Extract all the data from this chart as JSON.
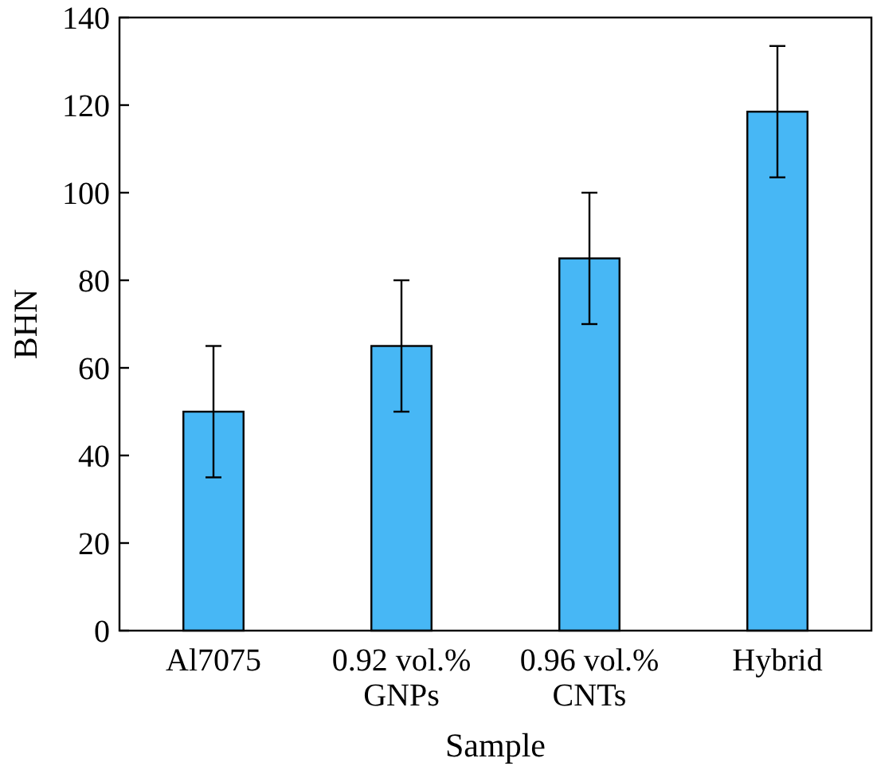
{
  "chart_data": {
    "type": "bar",
    "xlabel": "Sample",
    "ylabel": "BHN",
    "categories": [
      "Al7075",
      "0.92 vol.%\nGNPs",
      "0.96 vol.%\nCNTs",
      "Hybrid"
    ],
    "values": [
      50,
      65,
      85,
      118.5
    ],
    "errors": [
      15,
      15,
      15,
      15
    ],
    "color": "#47b7f5",
    "ylim": [
      0,
      140
    ],
    "yticks": [
      0,
      20,
      40,
      60,
      80,
      100,
      120,
      140
    ],
    "grid": false
  }
}
